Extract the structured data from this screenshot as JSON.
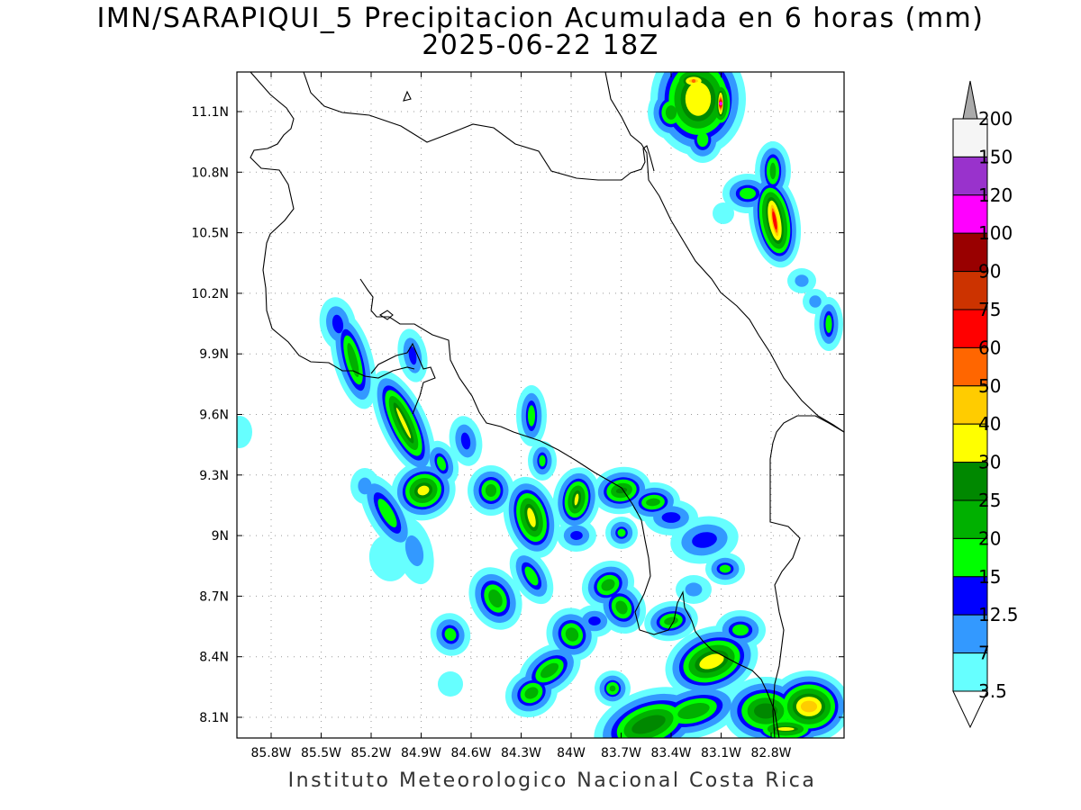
{
  "title": {
    "line1": "IMN/SARAPIQUI_5 Precipitacion Acumulada en 6 horas (mm)",
    "line2": "2025-06-22 18Z"
  },
  "credit": "Instituto Meteorologico Nacional Costa Rica",
  "map": {
    "lon_ticks": [
      "85.8W",
      "85.5W",
      "85.2W",
      "84.9W",
      "84.6W",
      "84.3W",
      "84W",
      "83.7W",
      "83.4W",
      "83.1W",
      "82.8W"
    ],
    "lat_ticks": [
      "11.1N",
      "10.8N",
      "10.5N",
      "10.2N",
      "9.9N",
      "9.6N",
      "9.3N",
      "9N",
      "8.7N",
      "8.4N",
      "8.1N"
    ]
  },
  "legend": {
    "labels": [
      "200",
      "150",
      "120",
      "100",
      "90",
      "75",
      "60",
      "50",
      "40",
      "30",
      "25",
      "20",
      "15",
      "12.5",
      "7",
      "3.5"
    ],
    "colors": [
      "#f5f5f5",
      "#9932cc",
      "#ff00ff",
      "#990000",
      "#cc3300",
      "#ff0000",
      "#ff6600",
      "#ffcc00",
      "#ffff00",
      "#008800",
      "#00b000",
      "#00ff00",
      "#0000ff",
      "#3399ff",
      "#66ffff"
    ],
    "over_color": "#aaaaaa",
    "under_color": "#ffffff"
  },
  "palette": {
    "cyan": "#66ffff",
    "lightblue": "#3399ff",
    "blue": "#0000ff",
    "lightgreen": "#00ff00",
    "green": "#00b000",
    "darkgreen": "#008800",
    "yellow": "#ffff00",
    "gold": "#ffcc00",
    "orange": "#ff6600",
    "red": "#ff0000",
    "brownred": "#cc3300",
    "darkred": "#990000",
    "magenta": "#ff00ff"
  }
}
